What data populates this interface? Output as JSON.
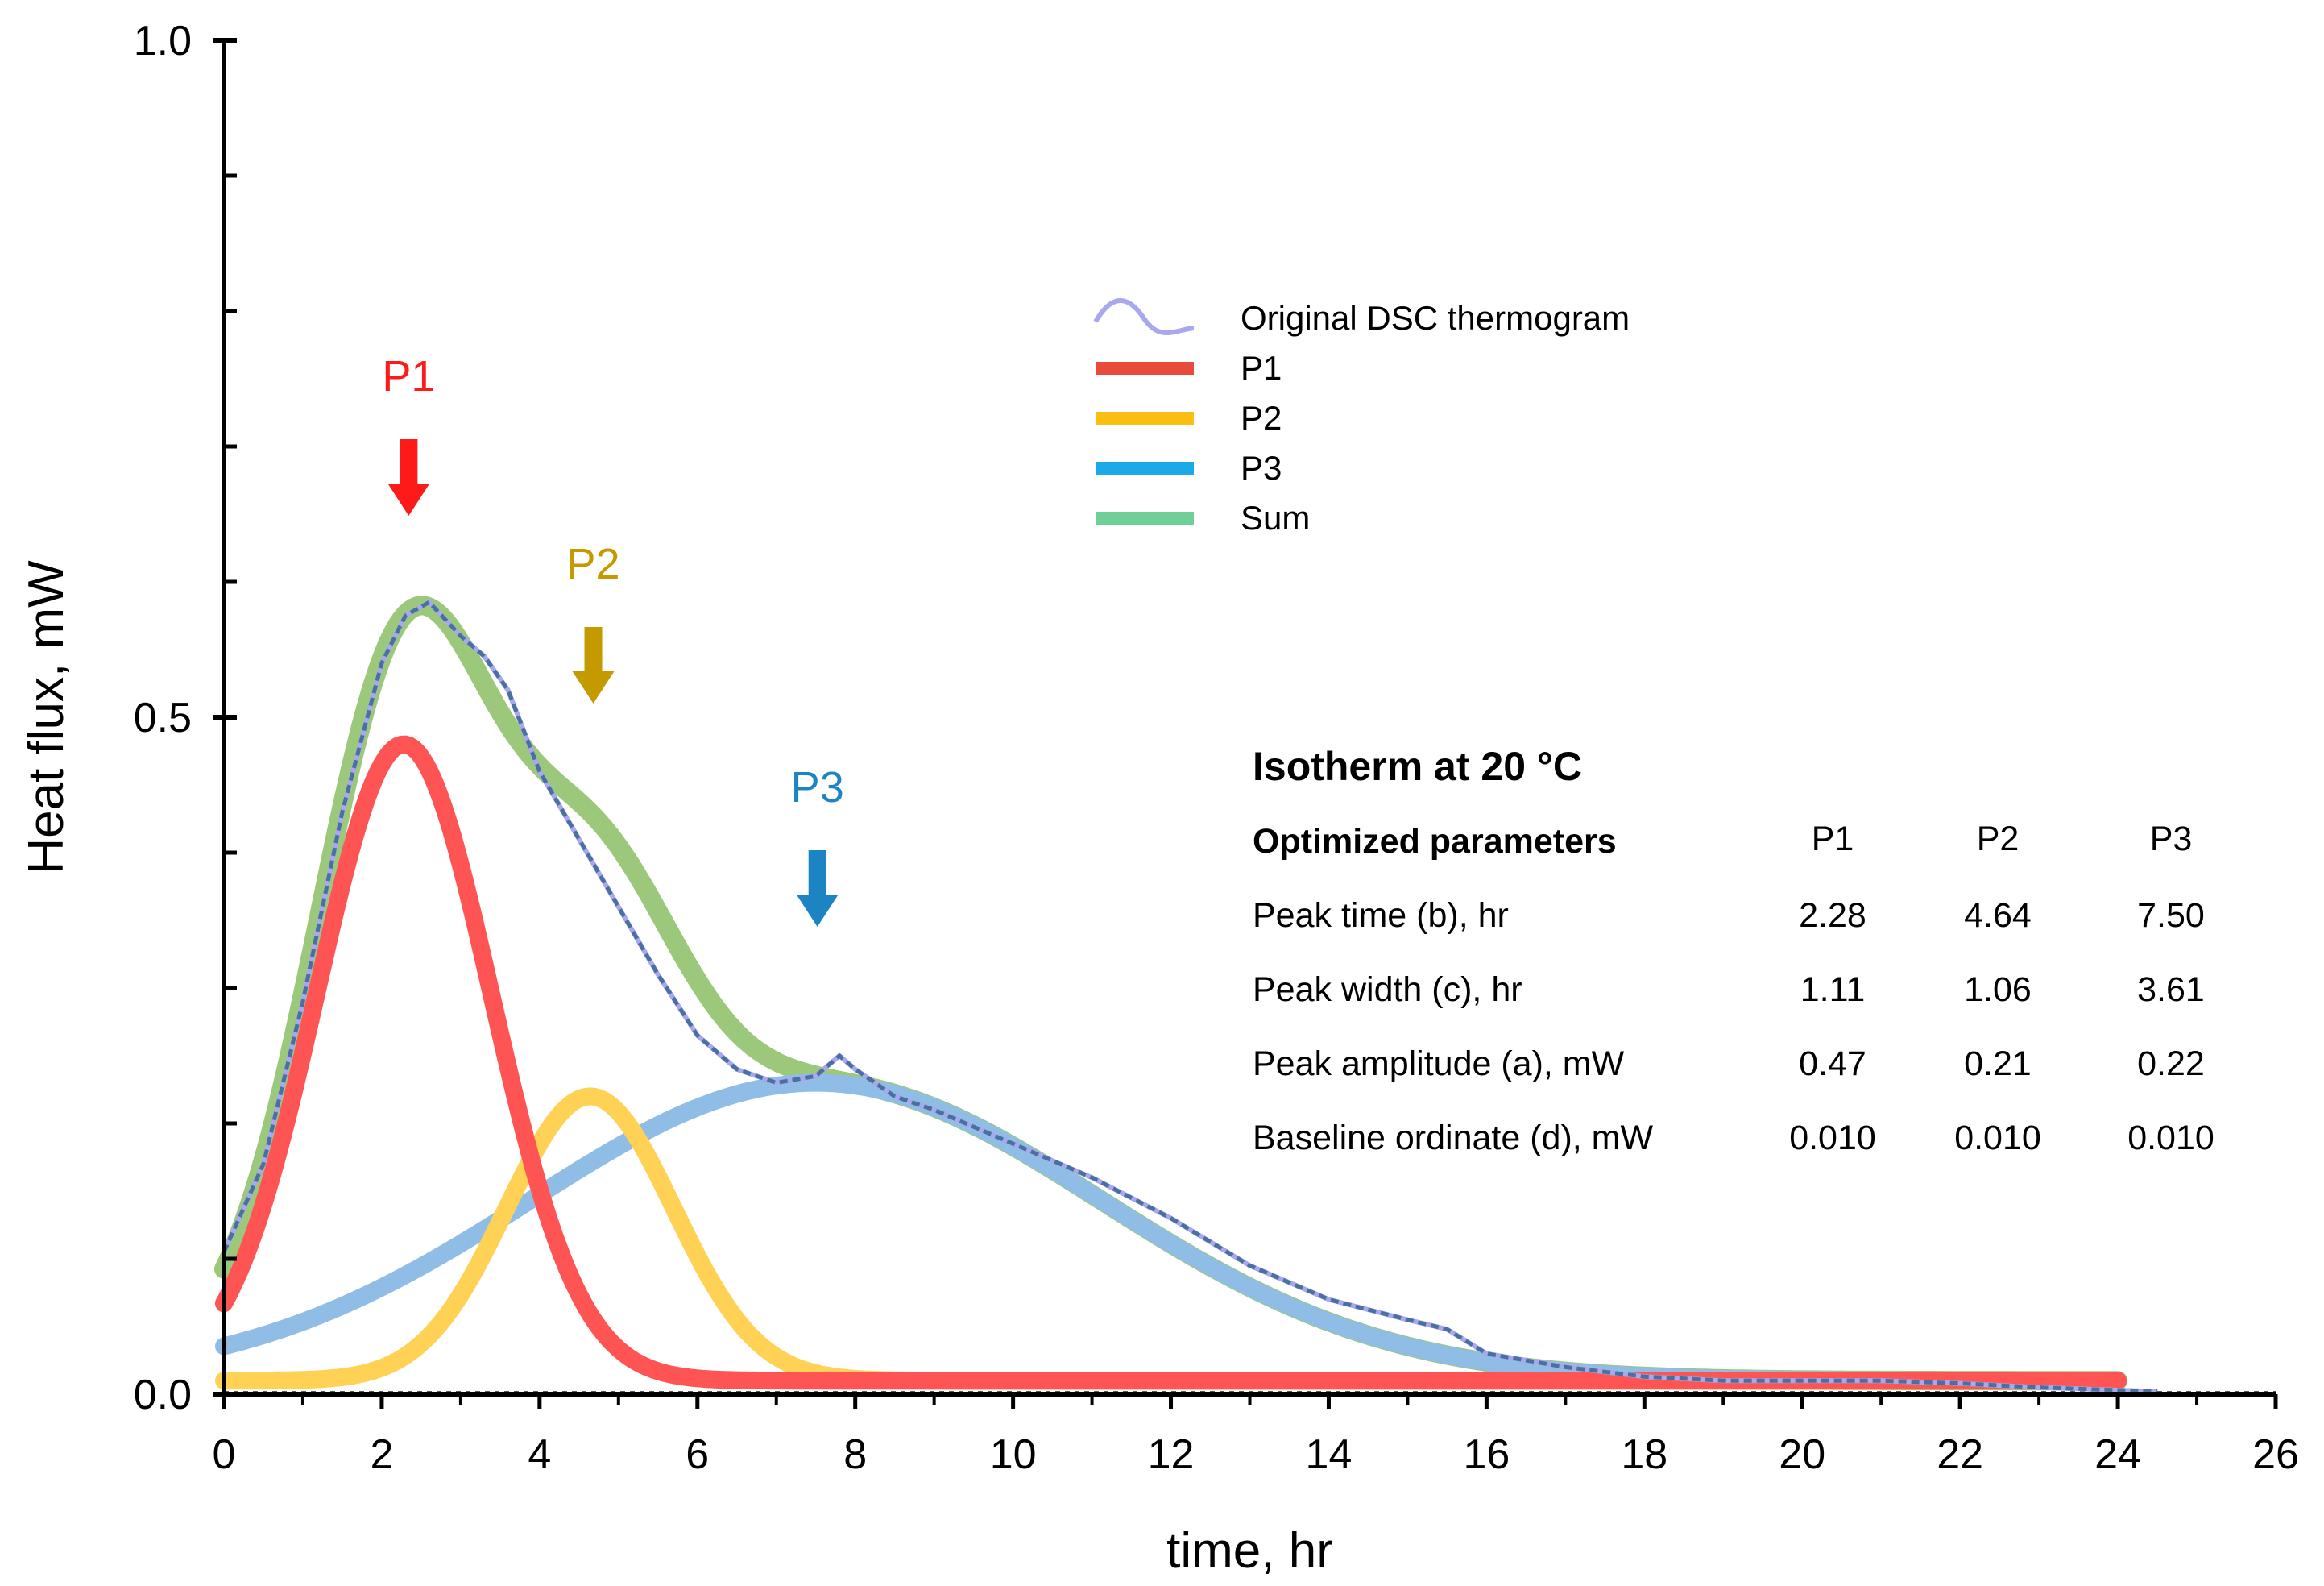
{
  "chart_data": {
    "type": "line",
    "xlabel": "time, hr",
    "ylabel": "Heat flux, mW",
    "xlim": [
      0,
      26
    ],
    "ylim": [
      0,
      1.0
    ],
    "x_ticks": [
      0,
      2,
      4,
      6,
      8,
      10,
      12,
      14,
      16,
      18,
      20,
      22,
      24,
      26
    ],
    "y_ticks": [
      0.0,
      0.5,
      1.0
    ],
    "x_tick_labels": [
      "0",
      "2",
      "4",
      "6",
      "8",
      "10",
      "12",
      "14",
      "16",
      "18",
      "20",
      "22",
      "24",
      "26"
    ],
    "y_tick_labels": [
      "0.0",
      "0.5",
      "1.0"
    ],
    "legend": {
      "placement": "top-center",
      "entries": [
        "Original DSC thermogram",
        "P1",
        "P2",
        "P3",
        "Sum"
      ]
    },
    "series": [
      {
        "name": "Original DSC thermogram",
        "color": "#a9a7ee",
        "x": [
          0,
          0.5,
          1,
          1.5,
          2,
          2.3,
          2.6,
          3,
          3.3,
          3.6,
          4,
          4.5,
          5,
          5.5,
          6,
          6.5,
          7,
          7.5,
          7.8,
          8,
          8.5,
          9,
          10,
          11,
          12,
          13,
          14,
          15,
          15.5,
          16,
          17,
          18,
          19,
          20,
          21,
          22,
          23,
          24,
          24.5
        ],
        "y": [
          0.105,
          0.17,
          0.29,
          0.43,
          0.54,
          0.575,
          0.585,
          0.56,
          0.545,
          0.52,
          0.46,
          0.41,
          0.36,
          0.31,
          0.265,
          0.24,
          0.23,
          0.235,
          0.25,
          0.24,
          0.22,
          0.21,
          0.185,
          0.16,
          0.13,
          0.095,
          0.07,
          0.055,
          0.048,
          0.03,
          0.02,
          0.013,
          0.01,
          0.01,
          0.01,
          0.008,
          0.005,
          0.003,
          0.002
        ]
      },
      {
        "name": "P1",
        "color": "#fe5454",
        "params": {
          "a": 0.47,
          "b": 2.28,
          "c": 1.11,
          "d": 0.01
        }
      },
      {
        "name": "P2",
        "color": "#ffd155",
        "params": {
          "a": 0.21,
          "b": 4.64,
          "c": 1.06,
          "d": 0.01
        }
      },
      {
        "name": "P3",
        "color": "#8fbde6",
        "params": {
          "a": 0.22,
          "b": 7.5,
          "c": 3.61,
          "d": 0.01
        }
      },
      {
        "name": "Sum",
        "color": "#9bc87a"
      }
    ],
    "peak_markers": [
      {
        "label": "P1",
        "color": "#ff1a1a",
        "x": 2.28
      },
      {
        "label": "P2",
        "color": "#c49a00",
        "x": 4.64
      },
      {
        "label": "P3",
        "color": "#1d84c4",
        "x": 7.5
      }
    ]
  },
  "table": {
    "title": "Isotherm at 20 °C",
    "header": "Optimized parameters",
    "columns": [
      {
        "label": "P1",
        "color": "#ff1a1a"
      },
      {
        "label": "P2",
        "color": "#c49a00"
      },
      {
        "label": "P3",
        "color": "#1d84c4"
      }
    ],
    "rows": [
      {
        "label": "Peak time (b), hr",
        "values": [
          "2.28",
          "4.64",
          "7.50"
        ]
      },
      {
        "label": "Peak width (c), hr",
        "values": [
          "1.11",
          "1.06",
          "3.61"
        ]
      },
      {
        "label": "Peak  amplitude (a), mW",
        "values": [
          "0.47",
          "0.21",
          "0.22"
        ]
      },
      {
        "label": "Baseline ordinate (d), mW",
        "values": [
          "0.010",
          "0.010",
          "0.010"
        ]
      }
    ]
  }
}
